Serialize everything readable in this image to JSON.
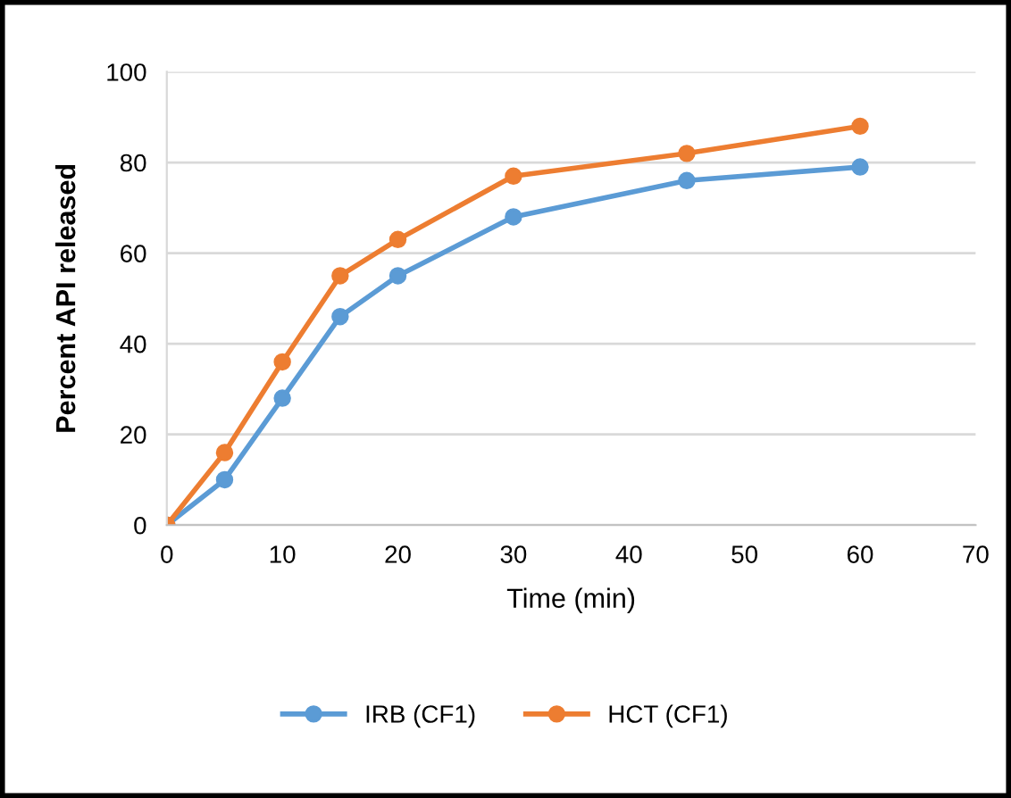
{
  "chart_data": {
    "type": "line",
    "xlabel": "Time (min)",
    "ylabel": "Percent API released",
    "x": [
      0,
      5,
      10,
      15,
      20,
      30,
      45,
      60
    ],
    "series": [
      {
        "name": "IRB (CF1)",
        "color": "#5b9bd5",
        "values": [
          0,
          10,
          28,
          46,
          55,
          68,
          76,
          79
        ]
      },
      {
        "name": "HCT (CF1)",
        "color": "#ed7d31",
        "values": [
          0,
          16,
          36,
          55,
          63,
          77,
          82,
          88
        ]
      }
    ],
    "xlim": [
      0,
      70
    ],
    "xticks": [
      0,
      10,
      20,
      30,
      40,
      50,
      60,
      70
    ],
    "ylim": [
      0,
      100
    ],
    "yticks": [
      0,
      20,
      40,
      60,
      80,
      100
    ],
    "grid": "y",
    "legend": "bottom",
    "marker": "circle",
    "line_style": "solid"
  }
}
